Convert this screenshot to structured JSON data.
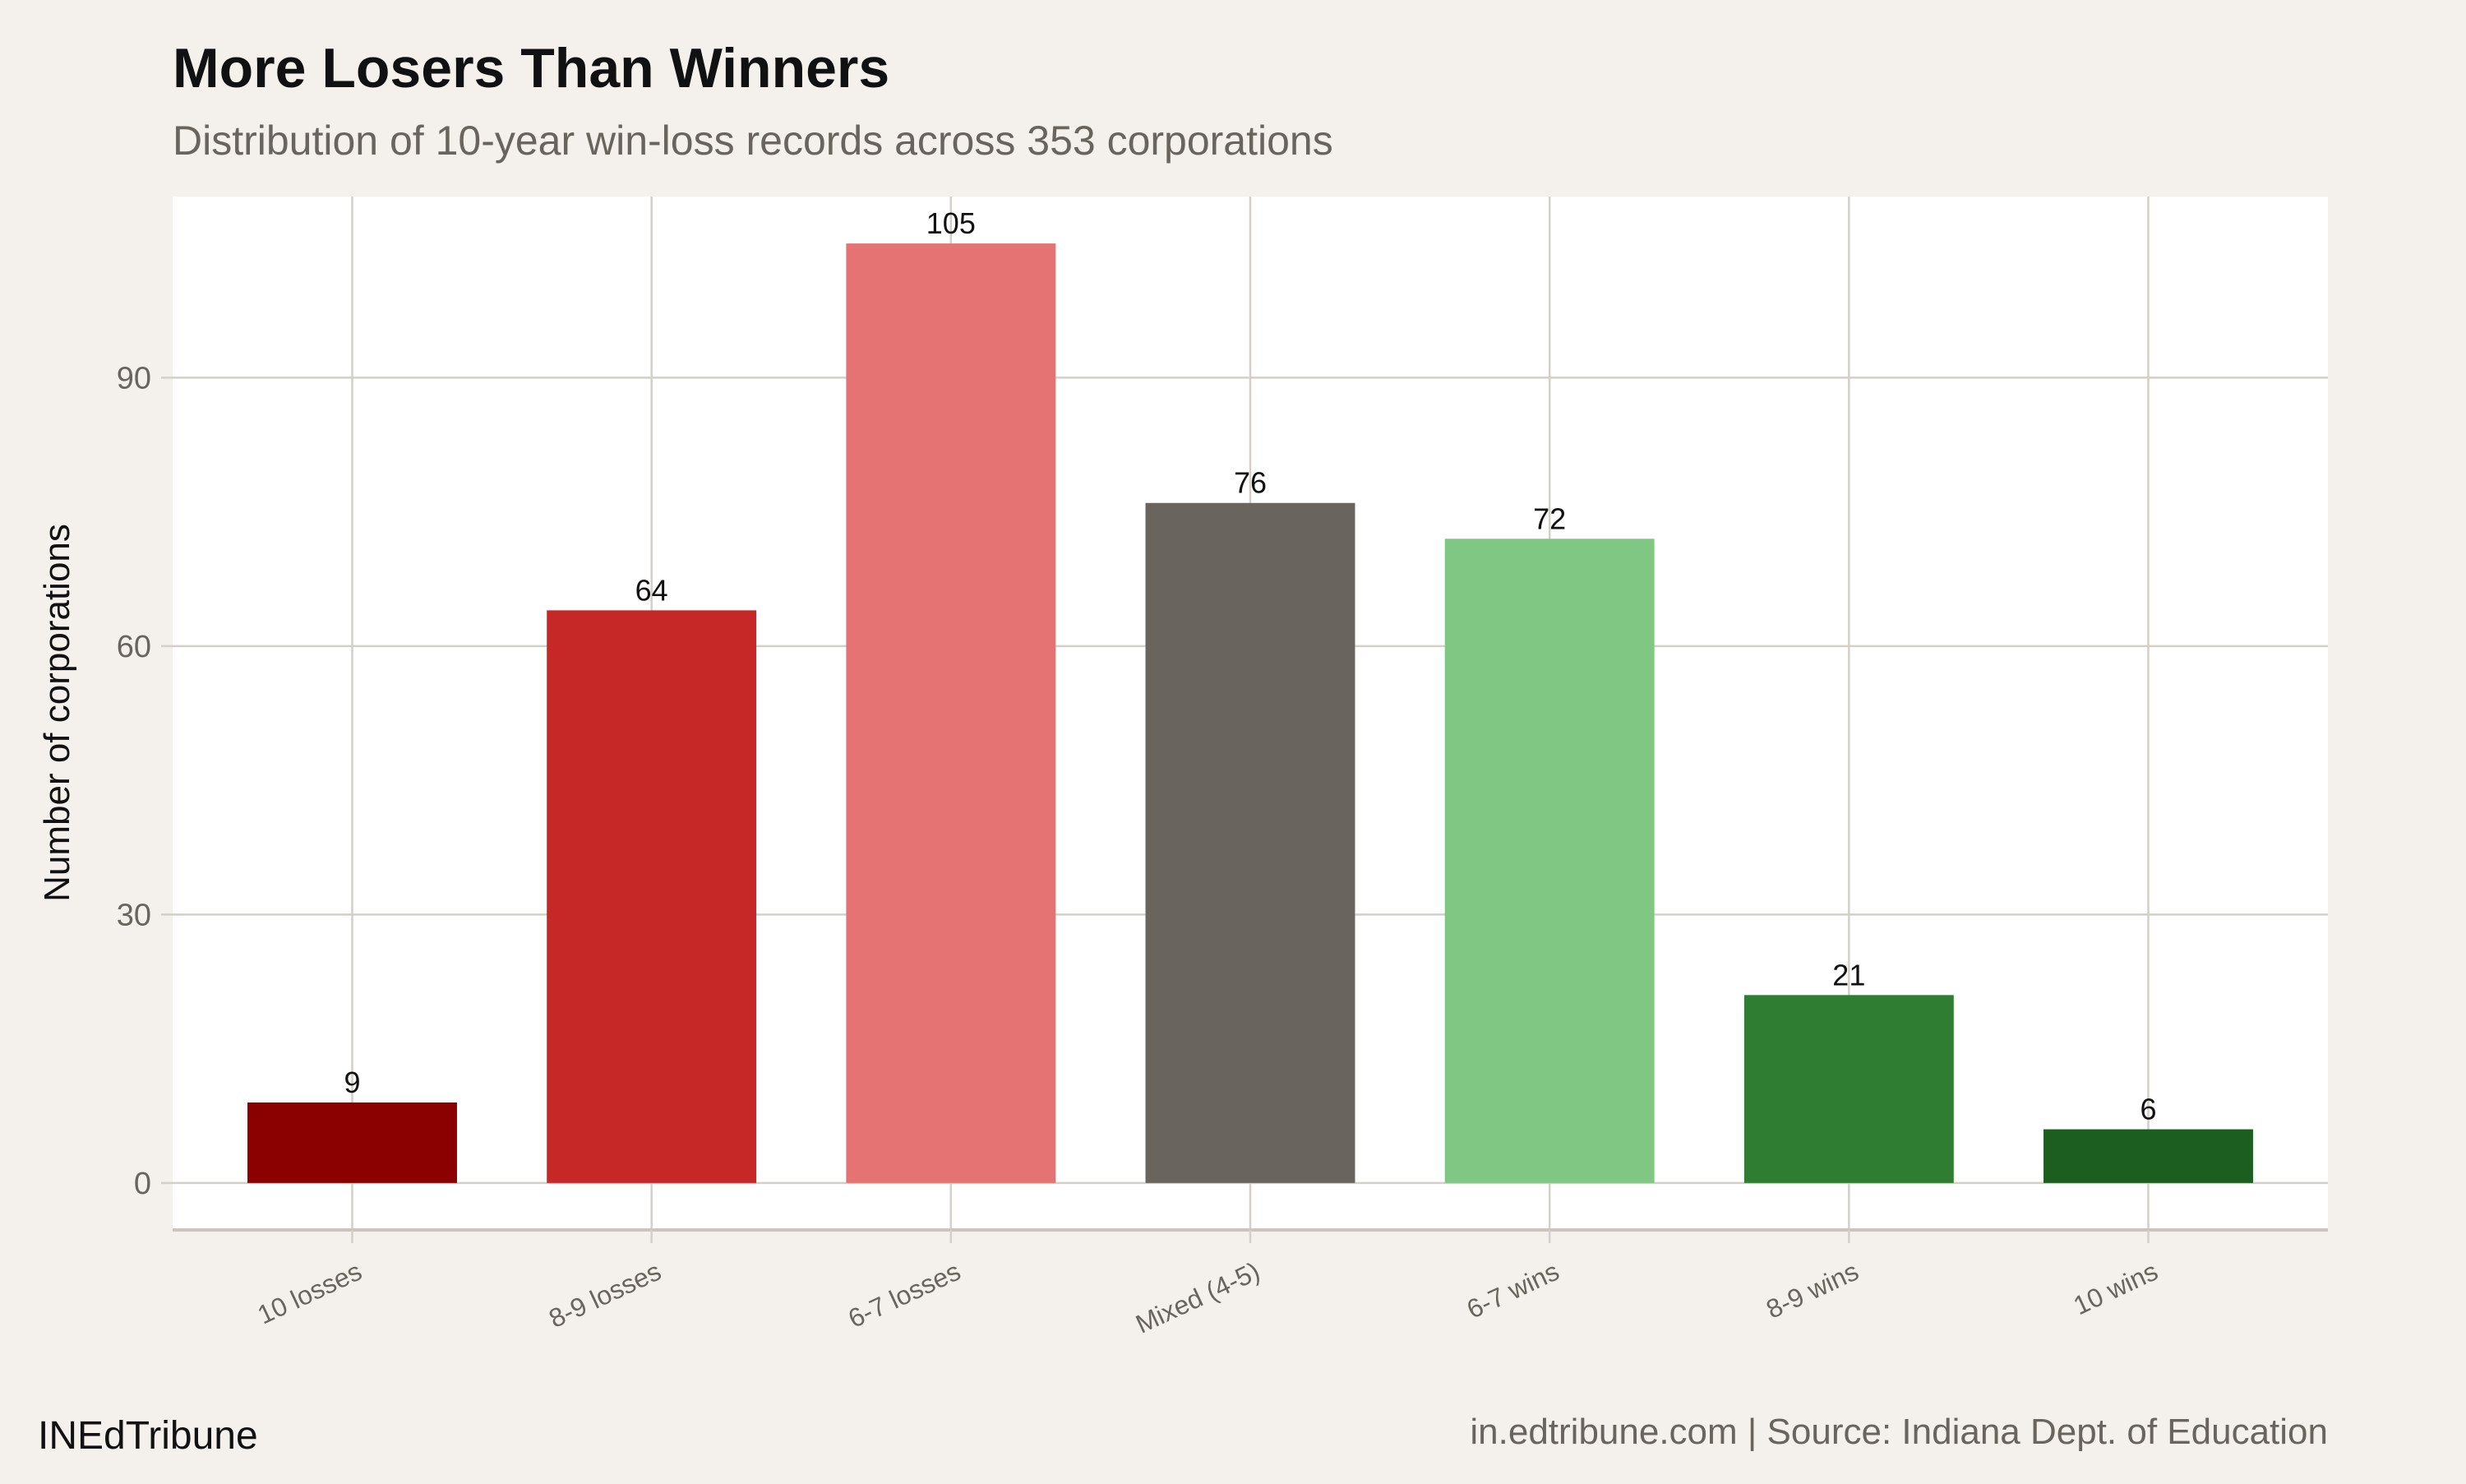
{
  "chart_data": {
    "type": "bar",
    "title": "More Losers Than Winners",
    "subtitle": "Distribution of 10-year win-loss records across 353 corporations",
    "xlabel": "",
    "ylabel": "Number of corporations",
    "categories": [
      "10 losses",
      "8-9 losses",
      "6-7 losses",
      "Mixed (4-5)",
      "6-7 wins",
      "8-9 wins",
      "10 wins"
    ],
    "values": [
      9,
      64,
      105,
      76,
      72,
      21,
      6
    ],
    "colors": [
      "#8B0000",
      "#C62828",
      "#E57373",
      "#69655E",
      "#81C784",
      "#2E7D32",
      "#1B5E20"
    ],
    "yticks": [
      0,
      30,
      60,
      90
    ],
    "ylim": [
      -5.25,
      110.25
    ],
    "grid": true,
    "legend": "none",
    "data_labels": true
  },
  "footer": {
    "brand": "INEdTribune",
    "source": "in.edtribune.com | Source: Indiana Dept. of Education"
  },
  "colors": {
    "background": "#F4F1EC",
    "panel": "#FFFFFF",
    "grid": "#D3CFC9",
    "muted_text": "#69655E"
  }
}
